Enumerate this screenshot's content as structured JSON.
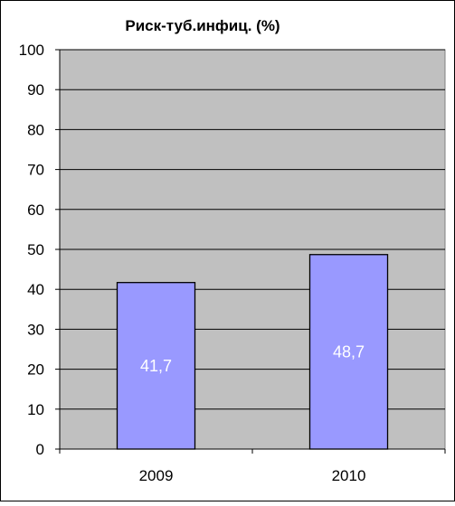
{
  "chart_data": {
    "type": "bar",
    "title": "Риск-туб.инфиц. (%)",
    "categories": [
      "2009",
      "2010"
    ],
    "values": [
      41.7,
      48.7
    ],
    "data_labels": [
      "41,7",
      "48,7"
    ],
    "ylim": [
      0,
      100
    ],
    "yticks": [
      0,
      10,
      20,
      30,
      40,
      50,
      60,
      70,
      80,
      90,
      100
    ],
    "xlabel": "",
    "ylabel": "",
    "grid": true,
    "legend": "none",
    "colors": {
      "bar_fill": "#9999ff",
      "plot_background": "#c0c0c0",
      "page_background": "#ffffff",
      "gridline": "#000000",
      "data_label": "#ffffff"
    }
  }
}
